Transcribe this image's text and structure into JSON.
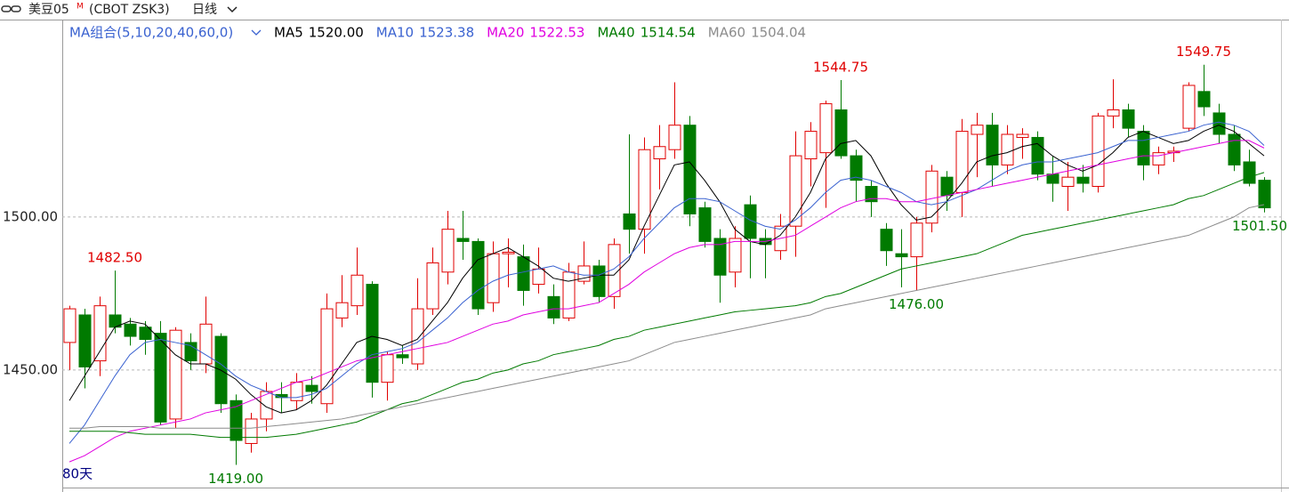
{
  "chart_data": {
    "type": "candlestick",
    "symbol": "美豆05",
    "symbol_mark": "M",
    "code": "(CBOT ZSK3)",
    "period": "日线",
    "ma_group": "MA组合(5,10,20,40,60,0)",
    "span": "80天",
    "up_color": "#e00000",
    "down_color": "#007a00",
    "ylim": [
      1411.6,
      1564.5
    ],
    "yticks": [
      {
        "value": 1500,
        "label": "1500.00"
      },
      {
        "value": 1450,
        "label": "1450.00"
      }
    ],
    "grid": true,
    "open": [
      1459,
      1468,
      1453,
      1468,
      1465,
      1464,
      1462,
      1434,
      1459,
      1452,
      1461,
      1440,
      1426,
      1434,
      1442,
      1440,
      1445,
      1439,
      1467,
      1471,
      1478,
      1446,
      1455,
      1452,
      1470,
      1482,
      1493,
      1492,
      1472,
      1488,
      1487,
      1478,
      1474,
      1467,
      1479,
      1484,
      1474,
      1501,
      1496,
      1519,
      1522,
      1530,
      1503,
      1493,
      1482,
      1504,
      1493,
      1489,
      1497,
      1519,
      1521,
      1535,
      1520,
      1510,
      1496,
      1488,
      1487,
      1498,
      1513,
      1508,
      1527,
      1530,
      1517,
      1526,
      1526,
      1514,
      1510,
      1513,
      1510,
      1533,
      1535,
      1528,
      1517,
      1521,
      1529,
      1541,
      1534,
      1527,
      1518,
      1512
    ],
    "high": [
      1471,
      1470,
      1474,
      1482.5,
      1467,
      1466,
      1466,
      1464,
      1462,
      1474,
      1462,
      1442,
      1436,
      1446,
      1446,
      1449,
      1448,
      1475,
      1481,
      1490,
      1479,
      1456,
      1458,
      1480,
      1490,
      1502,
      1502,
      1493,
      1492,
      1493,
      1491,
      1490,
      1478,
      1485,
      1492,
      1486,
      1493,
      1527,
      1526,
      1530,
      1544,
      1533,
      1505,
      1496,
      1497,
      1507,
      1496,
      1501,
      1528,
      1531,
      1538,
      1544.75,
      1522,
      1512,
      1498,
      1496,
      1500,
      1517,
      1515,
      1532,
      1534,
      1534,
      1530,
      1529,
      1528,
      1520,
      1518,
      1517,
      1534,
      1545,
      1537,
      1530,
      1523,
      1523,
      1544,
      1549.75,
      1537,
      1530,
      1522,
      1513
    ],
    "low": [
      1450,
      1444,
      1448,
      1462,
      1458,
      1455,
      1432,
      1431,
      1450,
      1449,
      1436,
      1419,
      1423,
      1430,
      1436,
      1437,
      1439,
      1436,
      1464,
      1468,
      1441,
      1440,
      1452,
      1450,
      1468,
      1478,
      1486,
      1468,
      1469,
      1477,
      1471,
      1475,
      1465,
      1466,
      1478,
      1472,
      1470,
      1488,
      1488,
      1509,
      1519,
      1497,
      1490,
      1472,
      1477,
      1480,
      1480,
      1486,
      1487,
      1510,
      1503,
      1519,
      1505,
      1500,
      1484,
      1477,
      1476,
      1495,
      1502,
      1500,
      1513,
      1510,
      1514,
      1519,
      1512,
      1505,
      1502,
      1508,
      1508,
      1529,
      1526,
      1512,
      1514,
      1518,
      1528,
      1533,
      1524,
      1515,
      1510,
      1501.5
    ],
    "close": [
      1470,
      1451,
      1471,
      1464,
      1461,
      1460,
      1433,
      1463,
      1453,
      1465,
      1439,
      1427,
      1434,
      1443,
      1441,
      1446,
      1443,
      1470,
      1472,
      1481,
      1446,
      1455,
      1454,
      1470,
      1485,
      1496,
      1492,
      1470,
      1488,
      1488.5,
      1476,
      1483,
      1467,
      1482,
      1484,
      1474,
      1491,
      1496,
      1522,
      1523,
      1530,
      1501,
      1492,
      1481,
      1493,
      1493,
      1491,
      1497,
      1520,
      1528,
      1537,
      1520,
      1512,
      1505,
      1489,
      1487,
      1498,
      1515,
      1507,
      1528,
      1530,
      1517,
      1527,
      1527,
      1514,
      1511,
      1513,
      1511,
      1533,
      1535,
      1529,
      1517,
      1521,
      1521.5,
      1543,
      1536,
      1527,
      1517,
      1511,
      1503
    ],
    "series": [
      {
        "name": "MA5",
        "color": "#000000",
        "current_label": "1520.00",
        "values": [
          1440,
          1448,
          1456,
          1464,
          1466,
          1465,
          1460,
          1455,
          1452,
          1452,
          1450,
          1447,
          1442,
          1438,
          1436,
          1437,
          1440,
          1445,
          1452,
          1459,
          1461,
          1460,
          1458,
          1460,
          1466,
          1472,
          1480,
          1486,
          1488,
          1490,
          1487,
          1484,
          1480,
          1479,
          1480,
          1481,
          1481,
          1486,
          1497,
          1507,
          1517,
          1518,
          1512,
          1505,
          1496,
          1492,
          1491,
          1494,
          1500,
          1508,
          1519,
          1524,
          1525,
          1520,
          1511,
          1504,
          1499,
          1500,
          1505,
          1511,
          1518,
          1520,
          1521,
          1523,
          1524,
          1520,
          1517,
          1515,
          1517,
          1521,
          1526,
          1528,
          1526,
          1524,
          1525,
          1528,
          1530,
          1528,
          1524,
          1520
        ]
      },
      {
        "name": "MA10",
        "color": "#3a62d0",
        "current_label": "1523.38",
        "values": [
          1426,
          1432,
          1440,
          1448,
          1455,
          1459,
          1460,
          1459,
          1458,
          1455,
          1452,
          1448,
          1445,
          1443,
          1441,
          1441,
          1442,
          1444,
          1448,
          1452,
          1455,
          1456,
          1457,
          1459,
          1463,
          1467,
          1472,
          1476,
          1479,
          1481,
          1482,
          1483,
          1484,
          1482,
          1481,
          1481,
          1483,
          1487,
          1493,
          1498,
          1503,
          1506,
          1506,
          1505,
          1502,
          1499,
          1497,
          1496,
          1499,
          1503,
          1508,
          1512,
          1513,
          1512,
          1510,
          1508,
          1505,
          1504,
          1505,
          1507,
          1509,
          1512,
          1515,
          1517,
          1518,
          1518,
          1519,
          1520,
          1521,
          1523,
          1525,
          1525,
          1526,
          1527,
          1528,
          1530,
          1531,
          1530,
          1528,
          1523.38
        ]
      },
      {
        "name": "MA20",
        "color": "#e000e0",
        "current_label": "1522.53",
        "values": [
          1420,
          1422,
          1425,
          1428,
          1430,
          1431,
          1432,
          1433,
          1434,
          1436,
          1437,
          1438,
          1440,
          1442,
          1444,
          1446,
          1447,
          1449,
          1451,
          1453,
          1454,
          1455,
          1456,
          1457,
          1458,
          1459,
          1461,
          1463,
          1465,
          1466,
          1468,
          1469,
          1470,
          1470,
          1471,
          1472,
          1475,
          1478,
          1482,
          1485,
          1488,
          1490,
          1491,
          1491,
          1492,
          1492,
          1492,
          1493,
          1494,
          1497,
          1500,
          1503,
          1505,
          1506,
          1506,
          1505,
          1505,
          1506,
          1507,
          1508,
          1509,
          1510,
          1511,
          1512,
          1513,
          1514,
          1515,
          1516,
          1517,
          1518,
          1519,
          1520,
          1520,
          1521,
          1522,
          1523,
          1524,
          1525,
          1525,
          1522.53
        ]
      },
      {
        "name": "MA40",
        "color": "#007a00",
        "current_label": "1514.54",
        "values": [
          1430,
          1430,
          1430,
          1430,
          1429.5,
          1429,
          1429,
          1429,
          1429,
          1428.5,
          1428,
          1428,
          1428,
          1428,
          1428.5,
          1429,
          1430,
          1431,
          1432,
          1433,
          1435,
          1437,
          1439,
          1440,
          1442,
          1444,
          1446,
          1447,
          1449,
          1450,
          1452,
          1453,
          1455,
          1456,
          1457,
          1458,
          1460,
          1461,
          1463,
          1464,
          1465,
          1466,
          1467,
          1468,
          1469,
          1469.5,
          1470,
          1470.5,
          1471,
          1472,
          1474,
          1475,
          1477,
          1479,
          1481,
          1483,
          1484,
          1485,
          1486,
          1487,
          1488,
          1490,
          1492,
          1494,
          1495,
          1496,
          1497,
          1498,
          1499,
          1500,
          1501,
          1502,
          1503,
          1504,
          1506,
          1507,
          1509,
          1511,
          1513,
          1514.54
        ]
      },
      {
        "name": "MA60",
        "color": "#8c8c8c",
        "current_label": "1504.04",
        "values": [
          1431,
          1431,
          1431.5,
          1431.5,
          1431.5,
          1431.5,
          1431,
          1431,
          1431,
          1431,
          1431,
          1431,
          1431,
          1431.5,
          1432,
          1432.5,
          1433,
          1433.5,
          1434,
          1435,
          1436,
          1437,
          1438,
          1439,
          1440,
          1441,
          1442,
          1443,
          1444,
          1445,
          1446,
          1447,
          1448,
          1449,
          1450,
          1451,
          1452,
          1453,
          1455,
          1457,
          1459,
          1460,
          1461,
          1462,
          1463,
          1464,
          1465,
          1466,
          1467,
          1468,
          1470,
          1471,
          1472,
          1473,
          1474,
          1475,
          1476,
          1477,
          1478,
          1479,
          1480,
          1481,
          1482,
          1483,
          1484,
          1485,
          1486,
          1487,
          1488,
          1489,
          1490,
          1491,
          1492,
          1493,
          1494,
          1496,
          1498,
          1500,
          1503,
          1504.04
        ]
      }
    ],
    "annotations": [
      {
        "value": 1482.5,
        "label": "1482.50"
      },
      {
        "value": 1419,
        "label": "1419.00"
      },
      {
        "value": 1544.75,
        "label": "1544.75"
      },
      {
        "value": 1476,
        "label": "1476.00"
      },
      {
        "value": 1549.75,
        "label": "1549.75"
      },
      {
        "value": 1501.5,
        "label": "1501.50"
      }
    ]
  }
}
